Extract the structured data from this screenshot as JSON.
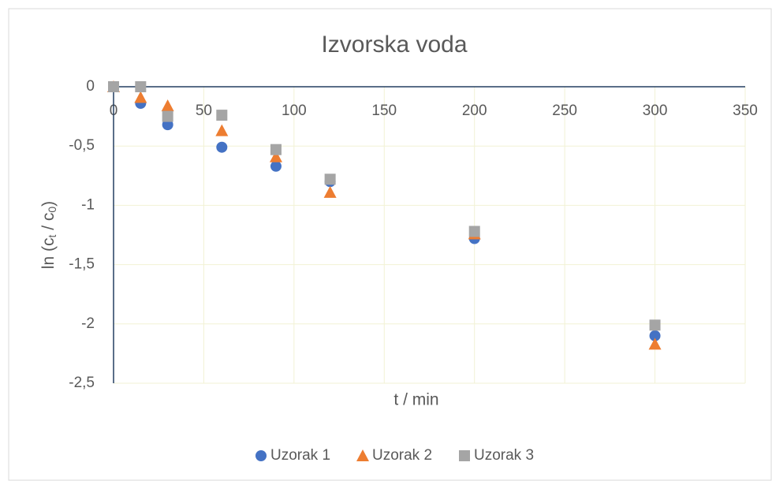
{
  "chart_data": {
    "type": "scatter",
    "title": "Izvorska voda",
    "x_label": "t / min",
    "y_label": [
      "ln (c",
      "t",
      " / c",
      "0",
      ")"
    ],
    "x": [
      0,
      15,
      30,
      60,
      90,
      120,
      200,
      300
    ],
    "series": [
      {
        "name": "Uzorak 1",
        "color": "#4472c4",
        "marker": "circle",
        "values": [
          0,
          -0.14,
          -0.32,
          -0.51,
          -0.67,
          -0.8,
          -1.28,
          -2.1
        ]
      },
      {
        "name": "Uzorak 2",
        "color": "#ed7d31",
        "marker": "triangle",
        "values": [
          0,
          -0.09,
          -0.16,
          -0.37,
          -0.59,
          -0.89,
          -1.24,
          -2.17
        ]
      },
      {
        "name": "Uzorak 3",
        "color": "#a5a5a5",
        "marker": "square",
        "values": [
          0,
          0,
          -0.25,
          -0.24,
          -0.53,
          -0.78,
          -1.22,
          -2.01
        ]
      }
    ],
    "xlim": [
      0,
      350
    ],
    "xticks": [
      0,
      50,
      100,
      150,
      200,
      250,
      300,
      350
    ],
    "ylim": [
      -2.5,
      0
    ],
    "yticks": [
      0,
      {
        "value": -0.5,
        "label": "-0,5"
      },
      -1,
      {
        "value": -1.5,
        "label": "-1,5"
      },
      -2,
      {
        "value": -2.5,
        "label": "-2,5"
      }
    ],
    "grid": true,
    "legend": "bottom"
  }
}
